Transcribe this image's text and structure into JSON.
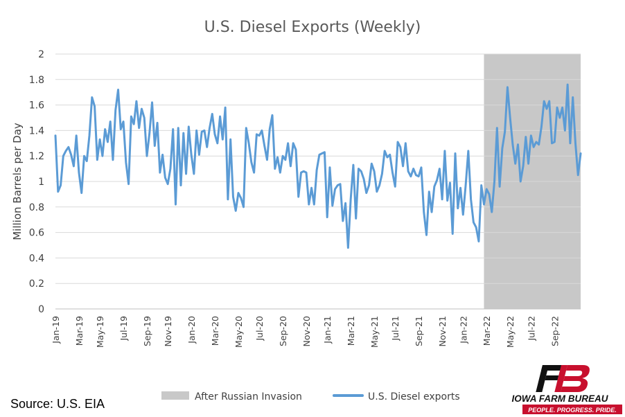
{
  "chart_data": {
    "type": "line",
    "title": "U.S. Diesel Exports (Weekly)",
    "ylabel": "Million Barrels per Day",
    "xlabel": "",
    "ylim": [
      0,
      2
    ],
    "yticks": [
      "0",
      "0.2",
      "0.4",
      "0.6",
      "0.8",
      "1",
      "1.2",
      "1.4",
      "1.6",
      "1.8",
      "2"
    ],
    "xticks": [
      "Jan-19",
      "Mar-19",
      "May-19",
      "Jul-19",
      "Sep-19",
      "Nov-19",
      "Jan-20",
      "Mar-20",
      "May-20",
      "Jul-20",
      "Sep-20",
      "Nov-20",
      "Jan-21",
      "Mar-21",
      "May-21",
      "Jul-21",
      "Sep-21",
      "Nov-21",
      "Jan-22",
      "Mar-22",
      "May-22",
      "Jul-22",
      "Sep-22"
    ],
    "grid": true,
    "legend_position": "bottom",
    "colors": {
      "series": "#5b9bd5",
      "shade": "#c8c8c8",
      "grid": "#d9d9d9"
    },
    "shaded_region": {
      "name": "After Russian Invasion",
      "start": "Feb-22 (week 4)",
      "end": "end of data",
      "y_top": 2
    },
    "series": [
      {
        "name": "U.S. Diesel exports",
        "frequency": "weekly",
        "start": "Jan-19",
        "values": [
          1.36,
          0.92,
          0.97,
          1.2,
          1.24,
          1.27,
          1.21,
          1.12,
          1.36,
          1.07,
          0.91,
          1.2,
          1.16,
          1.36,
          1.66,
          1.59,
          1.17,
          1.33,
          1.2,
          1.41,
          1.31,
          1.47,
          1.17,
          1.56,
          1.72,
          1.41,
          1.47,
          1.15,
          0.98,
          1.51,
          1.45,
          1.63,
          1.42,
          1.57,
          1.5,
          1.2,
          1.38,
          1.62,
          1.28,
          1.46,
          1.07,
          1.21,
          1.03,
          0.98,
          1.1,
          1.41,
          0.82,
          1.42,
          0.97,
          1.38,
          1.06,
          1.43,
          1.21,
          1.06,
          1.4,
          1.21,
          1.39,
          1.4,
          1.27,
          1.42,
          1.53,
          1.37,
          1.3,
          1.51,
          1.33,
          1.58,
          0.86,
          1.33,
          0.88,
          0.77,
          0.91,
          0.87,
          0.8,
          1.42,
          1.3,
          1.15,
          1.07,
          1.37,
          1.36,
          1.4,
          1.28,
          1.17,
          1.41,
          1.52,
          1.1,
          1.19,
          1.07,
          1.2,
          1.17,
          1.3,
          1.12,
          1.3,
          1.25,
          0.88,
          1.07,
          1.08,
          1.07,
          0.82,
          0.95,
          0.82,
          1.09,
          1.21,
          1.22,
          1.23,
          0.72,
          1.11,
          0.81,
          0.94,
          0.97,
          0.98,
          0.69,
          0.83,
          0.48,
          0.86,
          1.13,
          0.71,
          1.1,
          1.08,
          1.02,
          0.91,
          0.97,
          1.14,
          1.08,
          0.92,
          0.97,
          1.06,
          1.24,
          1.19,
          1.21,
          1.07,
          0.96,
          1.31,
          1.27,
          1.12,
          1.3,
          1.08,
          1.04,
          1.1,
          1.05,
          1.04,
          1.11,
          0.76,
          0.58,
          0.92,
          0.76,
          0.96,
          1.01,
          1.1,
          0.86,
          1.24,
          0.85,
          0.99,
          0.59,
          1.22,
          0.79,
          0.95,
          0.74,
          0.97,
          1.24,
          0.86,
          0.68,
          0.64,
          0.53,
          0.97,
          0.82,
          0.94,
          0.9,
          0.76,
          1.0,
          1.42,
          0.96,
          1.26,
          1.39,
          1.74,
          1.5,
          1.29,
          1.14,
          1.29,
          1.0,
          1.12,
          1.35,
          1.14,
          1.36,
          1.27,
          1.31,
          1.29,
          1.43,
          1.63,
          1.57,
          1.63,
          1.3,
          1.31,
          1.58,
          1.5,
          1.58,
          1.4,
          1.76,
          1.3,
          1.66,
          1.3,
          1.05,
          1.22
        ]
      }
    ]
  },
  "legend": {
    "shade_label": "After Russian Invasion",
    "line_label": "U.S. Diesel exports"
  },
  "source": "Source: U.S. EIA",
  "brand": {
    "name": "IOWA FARM BUREAU",
    "tagline": "PEOPLE. PROGRESS. PRIDE.",
    "colors": {
      "red": "#c8102e",
      "black": "#111111"
    }
  }
}
